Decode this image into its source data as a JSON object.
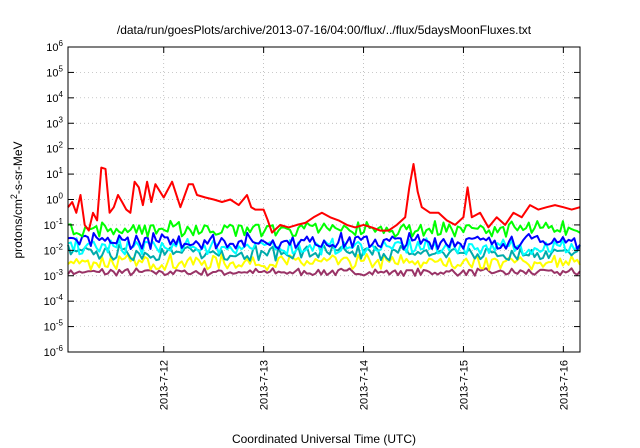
{
  "chart_data": {
    "type": "line",
    "title": "/data/run/goesPlots/archive/2013-07-16/04:00/flux/../flux/5daysMoonFluxes.txt",
    "xlabel": "Coordinated Universal Time (UTC)",
    "ylabel_parts": [
      "protons/cm",
      "2",
      "-s-sr-MeV"
    ],
    "y_scale": "log",
    "ylim": [
      1e-06,
      1000000.0
    ],
    "y_ticks": [
      {
        "value": 1000000.0,
        "mant": "10",
        "exp": "6"
      },
      {
        "value": 100000.0,
        "mant": "10",
        "exp": "5"
      },
      {
        "value": 10000.0,
        "mant": "10",
        "exp": "4"
      },
      {
        "value": 1000.0,
        "mant": "10",
        "exp": "3"
      },
      {
        "value": 100.0,
        "mant": "10",
        "exp": "2"
      },
      {
        "value": 10.0,
        "mant": "10",
        "exp": "1"
      },
      {
        "value": 1.0,
        "mant": "10",
        "exp": "0"
      },
      {
        "value": 0.1,
        "mant": "10",
        "exp": "-1"
      },
      {
        "value": 0.01,
        "mant": "10",
        "exp": "-2"
      },
      {
        "value": 0.001,
        "mant": "10",
        "exp": "-3"
      },
      {
        "value": 0.0001,
        "mant": "10",
        "exp": "-4"
      },
      {
        "value": 1e-05,
        "mant": "10",
        "exp": "-5"
      },
      {
        "value": 1e-06,
        "mant": "10",
        "exp": "-6"
      }
    ],
    "xlim": [
      "2013-07-11T01:00",
      "2013-07-16T04:00"
    ],
    "x_ticks": [
      {
        "value": "2013-07-12T00:00",
        "label": "2013-7-12"
      },
      {
        "value": "2013-07-13T00:00",
        "label": "2013-7-13"
      },
      {
        "value": "2013-07-14T00:00",
        "label": "2013-7-14"
      },
      {
        "value": "2013-07-15T00:00",
        "label": "2013-7-15"
      },
      {
        "value": "2013-07-16T00:00",
        "label": "2013-7-16"
      }
    ],
    "grid": true,
    "series": [
      {
        "color": "#ff0000",
        "x": [
          "2013-07-11T01:00",
          "2013-07-11T02:00",
          "2013-07-11T03:00",
          "2013-07-11T04:00",
          "2013-07-11T05:00",
          "2013-07-11T06:00",
          "2013-07-11T07:00",
          "2013-07-11T08:00",
          "2013-07-11T09:00",
          "2013-07-11T10:00",
          "2013-07-11T11:00",
          "2013-07-11T12:00",
          "2013-07-11T13:00",
          "2013-07-11T14:00",
          "2013-07-11T15:00",
          "2013-07-11T16:00",
          "2013-07-11T17:00",
          "2013-07-11T18:00",
          "2013-07-11T19:00",
          "2013-07-11T20:00",
          "2013-07-11T21:00",
          "2013-07-11T22:00",
          "2013-07-12T00:00",
          "2013-07-12T02:00",
          "2013-07-12T04:00",
          "2013-07-12T06:00",
          "2013-07-12T07:00",
          "2013-07-12T08:00",
          "2013-07-12T10:00",
          "2013-07-12T12:00",
          "2013-07-12T14:00",
          "2013-07-12T16:00",
          "2013-07-12T18:00",
          "2013-07-12T20:00",
          "2013-07-12T21:00",
          "2013-07-12T22:00",
          "2013-07-13T00:00",
          "2013-07-13T01:00",
          "2013-07-13T02:00",
          "2013-07-13T04:00",
          "2013-07-13T06:00",
          "2013-07-13T08:00",
          "2013-07-13T10:00",
          "2013-07-13T12:00",
          "2013-07-13T14:00",
          "2013-07-13T16:00",
          "2013-07-13T18:00",
          "2013-07-13T20:00",
          "2013-07-13T22:00",
          "2013-07-14T00:00",
          "2013-07-14T02:00",
          "2013-07-14T04:00",
          "2013-07-14T06:00",
          "2013-07-14T08:00",
          "2013-07-14T10:00",
          "2013-07-14T11:00",
          "2013-07-14T12:00",
          "2013-07-14T13:00",
          "2013-07-14T14:00",
          "2013-07-14T16:00",
          "2013-07-14T18:00",
          "2013-07-14T20:00",
          "2013-07-14T22:00",
          "2013-07-15T00:00",
          "2013-07-15T01:00",
          "2013-07-15T02:00",
          "2013-07-15T04:00",
          "2013-07-15T06:00",
          "2013-07-15T08:00",
          "2013-07-15T10:00",
          "2013-07-15T12:00",
          "2013-07-15T14:00",
          "2013-07-15T16:00",
          "2013-07-15T18:00",
          "2013-07-15T20:00",
          "2013-07-15T22:00",
          "2013-07-16T00:00",
          "2013-07-16T02:00",
          "2013-07-16T04:00"
        ],
        "y": [
          0.5,
          0.8,
          0.3,
          1.5,
          0.1,
          0.06,
          0.3,
          0.15,
          18,
          16,
          0.3,
          0.5,
          1.5,
          0.8,
          0.4,
          0.3,
          5,
          3,
          0.6,
          5,
          0.8,
          4,
          1.2,
          5,
          0.5,
          4,
          4,
          1.5,
          1.2,
          1.0,
          0.8,
          1.0,
          0.6,
          1.5,
          0.5,
          0.4,
          0.4,
          0.15,
          0.05,
          0.1,
          0.08,
          0.1,
          0.12,
          0.2,
          0.3,
          0.2,
          0.15,
          0.1,
          0.08,
          0.1,
          0.08,
          0.06,
          0.06,
          0.1,
          0.2,
          3,
          25,
          2,
          0.5,
          0.3,
          0.3,
          0.15,
          0.1,
          0.2,
          3,
          0.2,
          0.3,
          0.08,
          0.2,
          0.1,
          0.3,
          0.2,
          0.6,
          0.4,
          0.5,
          0.6,
          0.5,
          0.4,
          0.5
        ]
      },
      {
        "color": "#00ff00",
        "x": [
          "2013-07-11T01:00",
          "2013-07-16T04:00"
        ],
        "y": [
          0.06,
          0.06
        ],
        "note_base": 0.06
      },
      {
        "color": "#0000ff",
        "x": [
          "2013-07-11T01:00",
          "2013-07-16T04:00"
        ],
        "y": [
          0.02,
          0.02
        ]
      },
      {
        "color": "#00ffff",
        "x": [
          "2013-07-11T01:00",
          "2013-07-16T04:00"
        ],
        "y": [
          0.012,
          0.012
        ]
      },
      {
        "color": "#00aaaa",
        "x": [
          "2013-07-11T01:00",
          "2013-07-16T04:00"
        ],
        "y": [
          0.007,
          0.007
        ]
      },
      {
        "color": "#ffff00",
        "x": [
          "2013-07-11T01:00",
          "2013-07-16T04:00"
        ],
        "y": [
          0.003,
          0.003
        ]
      },
      {
        "color": "#993366",
        "x": [
          "2013-07-11T01:00",
          "2013-07-16T04:00"
        ],
        "y": [
          0.0013,
          0.0013
        ]
      }
    ]
  }
}
